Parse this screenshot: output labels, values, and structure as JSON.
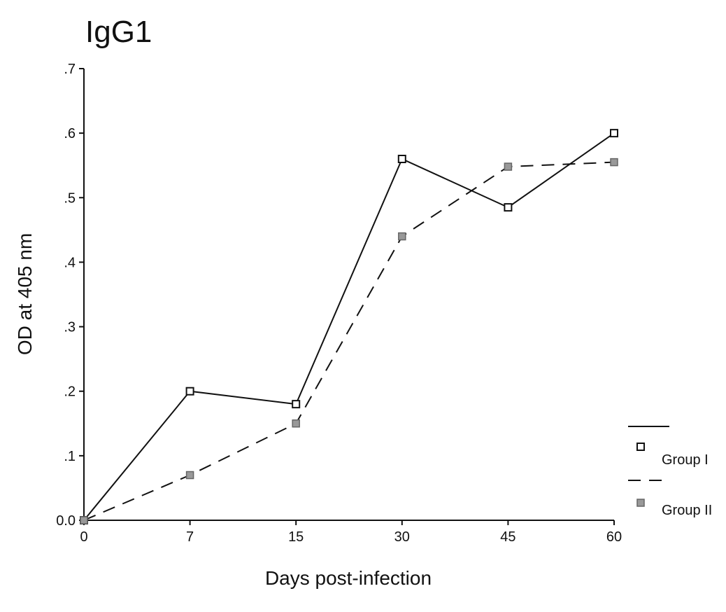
{
  "chart_data": {
    "type": "line",
    "title": "IgG1",
    "xlabel": "Days post-infection",
    "ylabel": "OD at 405 nm",
    "categories": [
      "0",
      "7",
      "15",
      "30",
      "45",
      "60"
    ],
    "ylim": [
      0,
      0.7
    ],
    "yticks": [
      0,
      0.1,
      0.2,
      0.3,
      0.4,
      0.5,
      0.6,
      0.7
    ],
    "ytick_labels": [
      "0.0",
      ".1",
      ".2",
      ".3",
      ".4",
      ".5",
      ".6",
      ".7"
    ],
    "grid": false,
    "legend_position": "right",
    "series": [
      {
        "name": "Group I",
        "values": [
          0.0,
          0.2,
          0.18,
          0.56,
          0.485,
          0.6
        ],
        "line_style": "solid",
        "marker": "open-square",
        "color": "#111111"
      },
      {
        "name": "Group II",
        "values": [
          0.0,
          0.07,
          0.15,
          0.44,
          0.548,
          0.555
        ],
        "line_style": "dashed",
        "marker": "filled-square",
        "color": "#111111",
        "marker_fill": "#999999"
      }
    ]
  }
}
